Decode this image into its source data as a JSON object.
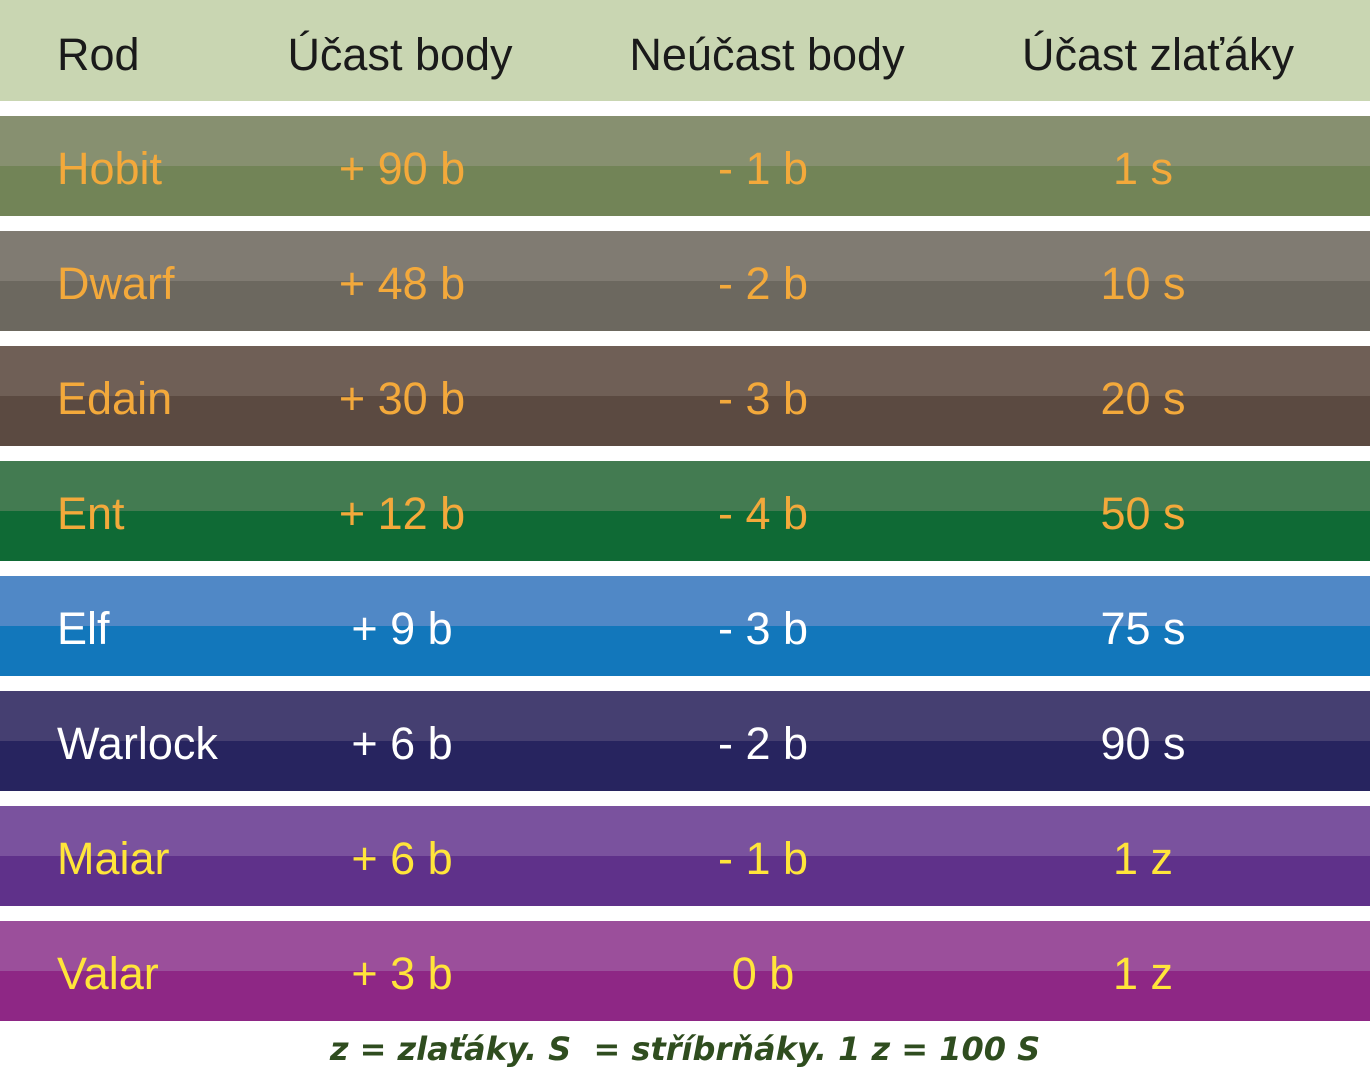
{
  "header": {
    "columns": [
      "Rod",
      "Účast body",
      "Neúčast body",
      "Účast zlaťáky"
    ]
  },
  "table": {
    "rows": [
      [
        "Hobit",
        "+ 90 b",
        "- 1 b",
        "1 s"
      ],
      [
        "Dwarf",
        "+ 48 b",
        "- 2 b",
        "10 s"
      ],
      [
        "Edain",
        "+ 30 b",
        "- 3 b",
        "20 s"
      ],
      [
        "Ent",
        "+ 12 b",
        "- 4 b",
        "50 s"
      ],
      [
        "Elf",
        "+ 9 b",
        "- 3 b",
        "75 s"
      ],
      [
        "Warlock",
        "+ 6 b",
        "- 2 b",
        "90 s"
      ],
      [
        "Maiar",
        "+ 6 b",
        "- 1 b",
        "1 z"
      ],
      [
        "Valar",
        "+ 3 b",
        "0 b",
        "1 z"
      ]
    ]
  },
  "footer": {
    "note": "z = zlaťáky. S  = stříbrňáky. 1 z = 100 S"
  }
}
